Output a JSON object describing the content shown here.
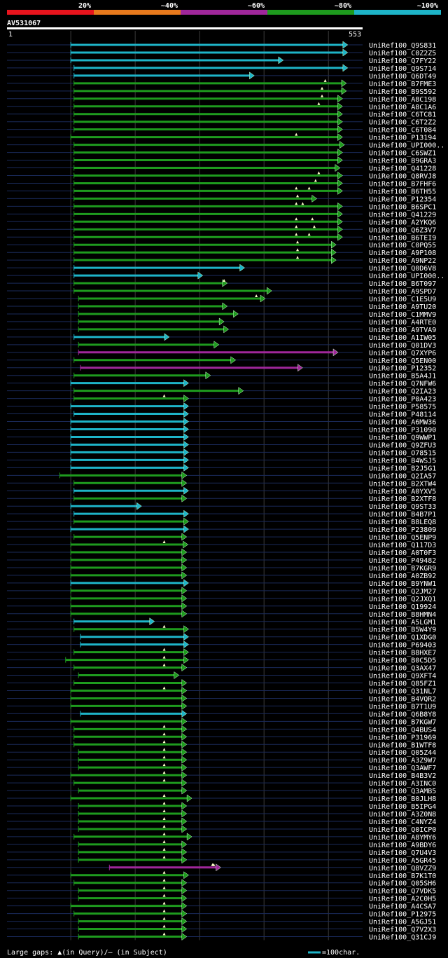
{
  "header": {
    "identity_bands": [
      {
        "label": "20%",
        "color": "#e8141d"
      },
      {
        "label": "~40%",
        "color": "#e87a1d"
      },
      {
        "label": "~60%",
        "color": "#a0279b"
      },
      {
        "label": "~80%",
        "color": "#1e9b1e"
      },
      {
        "label": "~100%",
        "color": "#1eb4c8"
      }
    ]
  },
  "query": {
    "id": "AV531067",
    "start_label": "1",
    "end_label": "553"
  },
  "legend": {
    "large_gaps_text": "Large gaps: ▲(in Query)/– (in Subject)",
    "scale_text": "=100char.",
    "scale_color": "#1eb4c8"
  },
  "chart_data": {
    "type": "alignment-overview",
    "query_length": 553,
    "x_range": [
      1,
      553
    ],
    "gridline_positions": [
      100,
      200,
      300,
      400,
      500
    ],
    "legend_entries": [
      "20%",
      "~40%",
      "~60%",
      "~80%",
      "~100%"
    ],
    "hits": [
      {
        "name": "UniRef100_Q9S831",
        "start": 100,
        "end": 530,
        "identity": "~100%",
        "gaps": []
      },
      {
        "name": "UniRef100_C0Z2Z5",
        "start": 100,
        "end": 530,
        "identity": "~100%",
        "gaps": []
      },
      {
        "name": "UniRef100_Q7FY22",
        "start": 100,
        "end": 430,
        "identity": "~100%",
        "gaps": []
      },
      {
        "name": "UniRef100_Q9S714",
        "start": 105,
        "end": 530,
        "identity": "~100%",
        "gaps": []
      },
      {
        "name": "UniRef100_Q6DT49",
        "start": 105,
        "end": 385,
        "identity": "~100%",
        "gaps": []
      },
      {
        "name": "UniRef100_B7FME3",
        "start": 105,
        "end": 528,
        "identity": "~80%",
        "gaps": [
          495
        ]
      },
      {
        "name": "UniRef100_B9S592",
        "start": 105,
        "end": 528,
        "identity": "~80%",
        "gaps": [
          490
        ]
      },
      {
        "name": "UniRef100_A8C198",
        "start": 105,
        "end": 522,
        "identity": "~80%",
        "gaps": [
          490
        ]
      },
      {
        "name": "UniRef100_A8C1A6",
        "start": 105,
        "end": 522,
        "identity": "~80%",
        "gaps": [
          485
        ]
      },
      {
        "name": "UniRef100_C6TC81",
        "start": 105,
        "end": 522,
        "identity": "~80%",
        "gaps": []
      },
      {
        "name": "UniRef100_C6T2Z2",
        "start": 105,
        "end": 522,
        "identity": "~80%",
        "gaps": []
      },
      {
        "name": "UniRef100_C6T084",
        "start": 105,
        "end": 522,
        "identity": "~80%",
        "gaps": []
      },
      {
        "name": "UniRef100_P13194",
        "start": 100,
        "end": 522,
        "identity": "~80%",
        "gaps": [
          450
        ]
      },
      {
        "name": "UniRef100_UPI000..",
        "start": 105,
        "end": 525,
        "identity": "~80%",
        "gaps": []
      },
      {
        "name": "UniRef100_C6SWZ1",
        "start": 105,
        "end": 522,
        "identity": "~80%",
        "gaps": []
      },
      {
        "name": "UniRef100_B9GRA3",
        "start": 105,
        "end": 522,
        "identity": "~80%",
        "gaps": []
      },
      {
        "name": "UniRef100_Q41228",
        "start": 105,
        "end": 518,
        "identity": "~80%",
        "gaps": []
      },
      {
        "name": "UniRef100_Q8RVJ8",
        "start": 105,
        "end": 522,
        "identity": "~80%",
        "gaps": [
          485
        ]
      },
      {
        "name": "UniRef100_B7FHF6",
        "start": 105,
        "end": 522,
        "identity": "~80%",
        "gaps": [
          480
        ]
      },
      {
        "name": "UniRef100_B6TH55",
        "start": 105,
        "end": 522,
        "identity": "~80%",
        "gaps": [
          450,
          470
        ]
      },
      {
        "name": "UniRef100_P12354",
        "start": 105,
        "end": 482,
        "identity": "~80%",
        "gaps": [
          452
        ]
      },
      {
        "name": "UniRef100_B6SPC1",
        "start": 105,
        "end": 522,
        "identity": "~80%",
        "gaps": [
          450,
          460
        ]
      },
      {
        "name": "UniRef100_Q41229",
        "start": 105,
        "end": 522,
        "identity": "~80%",
        "gaps": []
      },
      {
        "name": "UniRef100_A2YKQ6",
        "start": 105,
        "end": 522,
        "identity": "~80%",
        "gaps": [
          450,
          475
        ]
      },
      {
        "name": "UniRef100_Q6Z3V7",
        "start": 105,
        "end": 522,
        "identity": "~80%",
        "gaps": [
          450,
          478
        ]
      },
      {
        "name": "UniRef100_B6TEI9",
        "start": 105,
        "end": 522,
        "identity": "~80%",
        "gaps": [
          450,
          470
        ]
      },
      {
        "name": "UniRef100_C0PQ55",
        "start": 105,
        "end": 512,
        "identity": "~80%",
        "gaps": [
          452
        ]
      },
      {
        "name": "UniRef100_A9P108",
        "start": 105,
        "end": 512,
        "identity": "~80%",
        "gaps": [
          452
        ]
      },
      {
        "name": "UniRef100_A9NP22",
        "start": 105,
        "end": 512,
        "identity": "~80%",
        "gaps": [
          452
        ]
      },
      {
        "name": "UniRef100_Q0D6V8",
        "start": 105,
        "end": 370,
        "identity": "~100%",
        "gaps": []
      },
      {
        "name": "UniRef100_UPI000..",
        "start": 105,
        "end": 305,
        "identity": "~100%",
        "gaps": []
      },
      {
        "name": "UniRef100_B6T097",
        "start": 105,
        "end": 343,
        "identity": "~80%",
        "gaps": [
          338
        ]
      },
      {
        "name": "UniRef100_A9SPD7",
        "start": 105,
        "end": 412,
        "identity": "~80%",
        "gaps": []
      },
      {
        "name": "UniRef100_C1E5U9",
        "start": 112,
        "end": 402,
        "identity": "~80%",
        "gaps": [
          388
        ]
      },
      {
        "name": "UniRef100_A9TU20",
        "start": 112,
        "end": 343,
        "identity": "~80%",
        "gaps": []
      },
      {
        "name": "UniRef100_C1MMV9",
        "start": 112,
        "end": 360,
        "identity": "~80%",
        "gaps": []
      },
      {
        "name": "UniRef100_A4RTE0",
        "start": 112,
        "end": 338,
        "identity": "~80%",
        "gaps": []
      },
      {
        "name": "UniRef100_A9TVA9",
        "start": 112,
        "end": 345,
        "identity": "~80%",
        "gaps": []
      },
      {
        "name": "UniRef100_A1IW05",
        "start": 105,
        "end": 253,
        "identity": "~100%",
        "gaps": []
      },
      {
        "name": "UniRef100_Q01DV3",
        "start": 112,
        "end": 330,
        "identity": "~80%",
        "gaps": []
      },
      {
        "name": "UniRef100_Q7XYP6",
        "start": 112,
        "end": 515,
        "identity": "~60%",
        "gaps": []
      },
      {
        "name": "UniRef100_Q5EN00",
        "start": 105,
        "end": 356,
        "identity": "~80%",
        "gaps": []
      },
      {
        "name": "UniRef100_P12352",
        "start": 115,
        "end": 460,
        "identity": "~60%",
        "gaps": []
      },
      {
        "name": "UniRef100_B5A4J1",
        "start": 105,
        "end": 317,
        "identity": "~80%",
        "gaps": []
      },
      {
        "name": "UniRef100_Q7NFW6",
        "start": 100,
        "end": 283,
        "identity": "~100%",
        "gaps": []
      },
      {
        "name": "UniRef100_Q2IA23",
        "start": 105,
        "end": 368,
        "identity": "~80%",
        "gaps": []
      },
      {
        "name": "UniRef100_P0A423",
        "start": 105,
        "end": 283,
        "identity": "~80%",
        "gaps": [
          245
        ]
      },
      {
        "name": "UniRef100_P58575",
        "start": 100,
        "end": 283,
        "identity": "~100%",
        "gaps": []
      },
      {
        "name": "UniRef100_P48114",
        "start": 105,
        "end": 283,
        "identity": "~100%",
        "gaps": []
      },
      {
        "name": "UniRef100_A6MW36",
        "start": 100,
        "end": 283,
        "identity": "~100%",
        "gaps": []
      },
      {
        "name": "UniRef100_P31090",
        "start": 100,
        "end": 283,
        "identity": "~100%",
        "gaps": []
      },
      {
        "name": "UniRef100_Q9WWP1",
        "start": 100,
        "end": 283,
        "identity": "~100%",
        "gaps": []
      },
      {
        "name": "UniRef100_Q9ZFU3",
        "start": 100,
        "end": 283,
        "identity": "~100%",
        "gaps": []
      },
      {
        "name": "UniRef100_O78515",
        "start": 100,
        "end": 283,
        "identity": "~100%",
        "gaps": []
      },
      {
        "name": "UniRef100_B4WSJ5",
        "start": 100,
        "end": 283,
        "identity": "~100%",
        "gaps": []
      },
      {
        "name": "UniRef100_B2J5G1",
        "start": 100,
        "end": 283,
        "identity": "~100%",
        "gaps": []
      },
      {
        "name": "UniRef100_Q2IA57",
        "start": 83,
        "end": 280,
        "identity": "~80%",
        "gaps": []
      },
      {
        "name": "UniRef100_B2XTW4",
        "start": 105,
        "end": 280,
        "identity": "~80%",
        "gaps": []
      },
      {
        "name": "UniRef100_A0YXV5",
        "start": 105,
        "end": 283,
        "identity": "~100%",
        "gaps": []
      },
      {
        "name": "UniRef100_B2XTF8",
        "start": 105,
        "end": 280,
        "identity": "~80%",
        "gaps": []
      },
      {
        "name": "UniRef100_Q9ST33",
        "start": 100,
        "end": 210,
        "identity": "~100%",
        "gaps": []
      },
      {
        "name": "UniRef100_B4B7P1",
        "start": 105,
        "end": 283,
        "identity": "~100%",
        "gaps": []
      },
      {
        "name": "UniRef100_B8LEQ8",
        "start": 105,
        "end": 283,
        "identity": "~80%",
        "gaps": []
      },
      {
        "name": "UniRef100_P23809",
        "start": 100,
        "end": 283,
        "identity": "~100%",
        "gaps": []
      },
      {
        "name": "UniRef100_Q5ENP9",
        "start": 105,
        "end": 280,
        "identity": "~80%",
        "gaps": []
      },
      {
        "name": "UniRef100_Q117D3",
        "start": 100,
        "end": 282,
        "identity": "~80%",
        "gaps": [
          245
        ]
      },
      {
        "name": "UniRef100_A0T0F3",
        "start": 100,
        "end": 280,
        "identity": "~80%",
        "gaps": []
      },
      {
        "name": "UniRef100_P49482",
        "start": 100,
        "end": 280,
        "identity": "~80%",
        "gaps": []
      },
      {
        "name": "UniRef100_B7KGR9",
        "start": 100,
        "end": 280,
        "identity": "~80%",
        "gaps": []
      },
      {
        "name": "UniRef100_A0ZB92",
        "start": 100,
        "end": 280,
        "identity": "~80%",
        "gaps": []
      },
      {
        "name": "UniRef100_B9YNW1",
        "start": 100,
        "end": 283,
        "identity": "~100%",
        "gaps": []
      },
      {
        "name": "UniRef100_Q2JM27",
        "start": 100,
        "end": 280,
        "identity": "~80%",
        "gaps": []
      },
      {
        "name": "UniRef100_Q2JXQ1",
        "start": 100,
        "end": 280,
        "identity": "~80%",
        "gaps": []
      },
      {
        "name": "UniRef100_Q19924",
        "start": 100,
        "end": 280,
        "identity": "~80%",
        "gaps": []
      },
      {
        "name": "UniRef100_B8HMN4",
        "start": 100,
        "end": 280,
        "identity": "~80%",
        "gaps": []
      },
      {
        "name": "UniRef100_A5LGM1",
        "start": 105,
        "end": 230,
        "identity": "~100%",
        "gaps": []
      },
      {
        "name": "UniRef100_B5W4Y9",
        "start": 105,
        "end": 283,
        "identity": "~80%",
        "gaps": [
          245
        ]
      },
      {
        "name": "UniRef100_Q1XDG0",
        "start": 115,
        "end": 283,
        "identity": "~100%",
        "gaps": []
      },
      {
        "name": "UniRef100_P69403",
        "start": 115,
        "end": 283,
        "identity": "~100%",
        "gaps": []
      },
      {
        "name": "UniRef100_B8HXE7",
        "start": 105,
        "end": 283,
        "identity": "~80%",
        "gaps": [
          245
        ]
      },
      {
        "name": "UniRef100_B0C5D5",
        "start": 92,
        "end": 283,
        "identity": "~80%",
        "gaps": [
          245
        ]
      },
      {
        "name": "UniRef100_Q3AX47",
        "start": 105,
        "end": 280,
        "identity": "~80%",
        "gaps": [
          245
        ]
      },
      {
        "name": "UniRef100_Q9XFT4",
        "start": 112,
        "end": 268,
        "identity": "~80%",
        "gaps": []
      },
      {
        "name": "UniRef100_Q85FZ1",
        "start": 105,
        "end": 280,
        "identity": "~80%",
        "gaps": []
      },
      {
        "name": "UniRef100_Q31NL7",
        "start": 100,
        "end": 280,
        "identity": "~80%",
        "gaps": [
          245
        ]
      },
      {
        "name": "UniRef100_B4VQR2",
        "start": 100,
        "end": 280,
        "identity": "~80%",
        "gaps": []
      },
      {
        "name": "UniRef100_B7T1U9",
        "start": 100,
        "end": 280,
        "identity": "~80%",
        "gaps": []
      },
      {
        "name": "UniRef100_Q6B8Y8",
        "start": 115,
        "end": 280,
        "identity": "~100%",
        "gaps": []
      },
      {
        "name": "UniRef100_B7KGW7",
        "start": 100,
        "end": 280,
        "identity": "~80%",
        "gaps": []
      },
      {
        "name": "UniRef100_Q4BUS4",
        "start": 105,
        "end": 280,
        "identity": "~80%",
        "gaps": [
          245
        ]
      },
      {
        "name": "UniRef100_P31969",
        "start": 105,
        "end": 280,
        "identity": "~80%",
        "gaps": [
          245
        ]
      },
      {
        "name": "UniRef100_B1WTF8",
        "start": 105,
        "end": 280,
        "identity": "~80%",
        "gaps": [
          245
        ]
      },
      {
        "name": "UniRef100_Q05Z44",
        "start": 112,
        "end": 280,
        "identity": "~80%",
        "gaps": [
          245
        ]
      },
      {
        "name": "UniRef100_A3Z9W7",
        "start": 112,
        "end": 280,
        "identity": "~80%",
        "gaps": [
          245
        ]
      },
      {
        "name": "UniRef100_Q3AWF7",
        "start": 112,
        "end": 280,
        "identity": "~80%",
        "gaps": [
          245
        ]
      },
      {
        "name": "UniRef100_B4B3V2",
        "start": 100,
        "end": 280,
        "identity": "~80%",
        "gaps": [
          245
        ]
      },
      {
        "name": "UniRef100_A3INC0",
        "start": 105,
        "end": 280,
        "identity": "~80%",
        "gaps": [
          245
        ]
      },
      {
        "name": "UniRef100_Q3AMB5",
        "start": 112,
        "end": 280,
        "identity": "~80%",
        "gaps": []
      },
      {
        "name": "UniRef100_B0JLH8",
        "start": 100,
        "end": 288,
        "identity": "~80%",
        "gaps": [
          245
        ]
      },
      {
        "name": "UniRef100_B5IPG4",
        "start": 112,
        "end": 280,
        "identity": "~80%",
        "gaps": [
          245
        ]
      },
      {
        "name": "UniRef100_A3Z0N8",
        "start": 112,
        "end": 280,
        "identity": "~80%",
        "gaps": [
          245
        ]
      },
      {
        "name": "UniRef100_C4NYZ4",
        "start": 112,
        "end": 280,
        "identity": "~80%",
        "gaps": [
          245
        ]
      },
      {
        "name": "UniRef100_Q0ICP0",
        "start": 112,
        "end": 280,
        "identity": "~80%",
        "gaps": [
          245
        ]
      },
      {
        "name": "UniRef100_A8YMY6",
        "start": 105,
        "end": 288,
        "identity": "~80%",
        "gaps": [
          245
        ]
      },
      {
        "name": "UniRef100_A9BDY6",
        "start": 112,
        "end": 280,
        "identity": "~80%",
        "gaps": [
          245
        ]
      },
      {
        "name": "UniRef100_Q7U4V3",
        "start": 112,
        "end": 280,
        "identity": "~80%",
        "gaps": [
          245
        ]
      },
      {
        "name": "UniRef100_A5GR45",
        "start": 112,
        "end": 280,
        "identity": "~80%",
        "gaps": [
          245
        ]
      },
      {
        "name": "UniRef100_Q8VZZ9",
        "start": 160,
        "end": 333,
        "identity": "~60%",
        "gaps": [
          320,
          322
        ]
      },
      {
        "name": "UniRef100_B7K1T0",
        "start": 100,
        "end": 283,
        "identity": "~80%",
        "gaps": [
          245
        ]
      },
      {
        "name": "UniRef100_Q05SH6",
        "start": 105,
        "end": 280,
        "identity": "~80%",
        "gaps": [
          245
        ]
      },
      {
        "name": "UniRef100_Q7VDK5",
        "start": 112,
        "end": 280,
        "identity": "~80%",
        "gaps": [
          245
        ]
      },
      {
        "name": "UniRef100_A2C0H5",
        "start": 112,
        "end": 280,
        "identity": "~80%",
        "gaps": [
          245
        ]
      },
      {
        "name": "UniRef100_A4CSA7",
        "start": 100,
        "end": 280,
        "identity": "~80%",
        "gaps": [
          245
        ]
      },
      {
        "name": "UniRef100_P12975",
        "start": 105,
        "end": 280,
        "identity": "~80%",
        "gaps": [
          245
        ]
      },
      {
        "name": "UniRef100_A5GJ51",
        "start": 112,
        "end": 280,
        "identity": "~80%",
        "gaps": [
          245
        ]
      },
      {
        "name": "UniRef100_Q7V2X3",
        "start": 112,
        "end": 280,
        "identity": "~80%",
        "gaps": [
          245
        ]
      },
      {
        "name": "UniRef100_Q31CJ9",
        "start": 112,
        "end": 280,
        "identity": "~80%",
        "gaps": [
          245
        ]
      }
    ]
  }
}
